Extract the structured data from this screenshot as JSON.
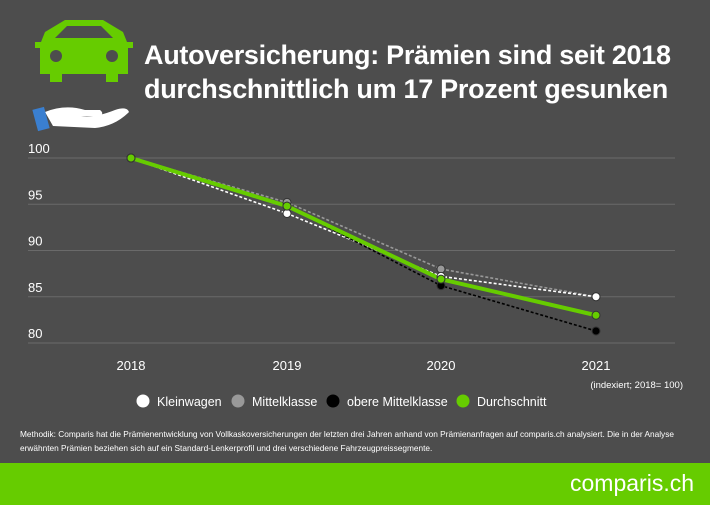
{
  "header": {
    "title_line1": "Autoversicherung: Prämien sind seit 2018",
    "title_line2": "durchschnittlich um 17 Prozent gesunken",
    "icon": "car-insurance-hand-icon"
  },
  "chart_data": {
    "type": "line",
    "categories": [
      "2018",
      "2019",
      "2020",
      "2021"
    ],
    "ylim": [
      80,
      100
    ],
    "yticks": [
      100,
      95,
      90,
      85,
      80
    ],
    "grid": true,
    "legend_position": "bottom",
    "note": "(indexiert; 2018= 100)",
    "series": [
      {
        "name": "Kleinwagen",
        "values": [
          100,
          94,
          87.2,
          85
        ],
        "color": "#ffffff",
        "dashed": true
      },
      {
        "name": "Mittelklasse",
        "values": [
          100,
          95.2,
          88,
          85
        ],
        "color": "#999999",
        "dashed": true
      },
      {
        "name": "obere Mittelklasse",
        "values": [
          100,
          94.8,
          86.2,
          81.3
        ],
        "color": "#000000",
        "dashed": true
      },
      {
        "name": "Durchschnitt",
        "values": [
          100,
          94.8,
          86.9,
          83
        ],
        "color": "#66cc00",
        "dashed": false
      }
    ]
  },
  "methodology": "Methodik: Comparis hat die Prämienentwicklung von Vollkaskoversicherungen der letzten drei Jahren anhand von Prämienanfragen auf comparis.ch analysiert. Die in der Analyse erwähnten Prämien beziehen sich auf ein Standard-Lenkerprofil und drei verschiedene Fahrzeugpreissegmente.",
  "footer": {
    "logo": "comparis.ch",
    "color": "#66cc00"
  }
}
